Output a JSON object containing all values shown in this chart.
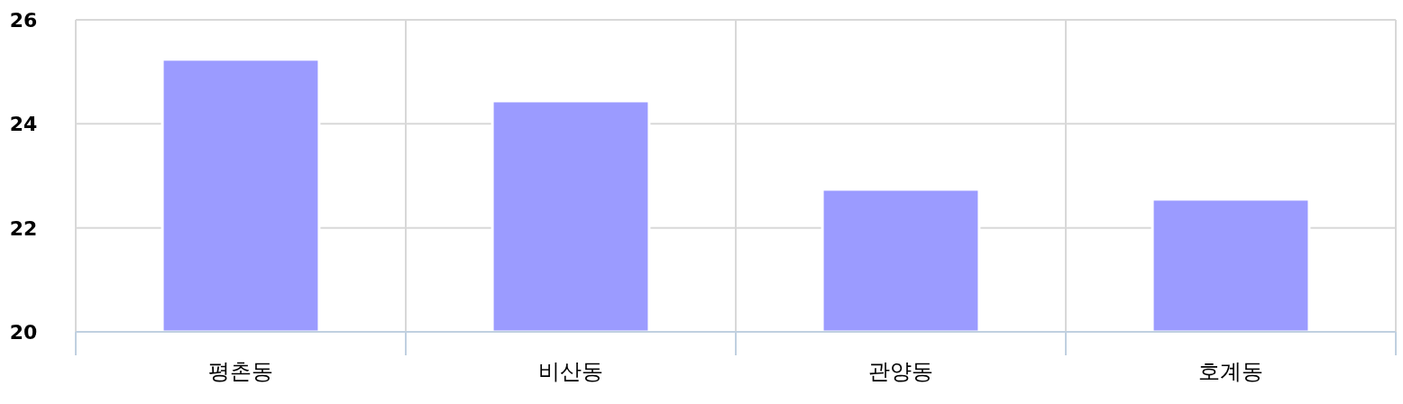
{
  "chart_data": {
    "type": "bar",
    "categories": [
      "평촌동",
      "비산동",
      "관양동",
      "호계동"
    ],
    "values": [
      25.24,
      24.44,
      22.74,
      22.55
    ],
    "color": "#9b9bff",
    "ylim": [
      20,
      26
    ],
    "yticks": [
      20,
      22,
      24,
      26
    ],
    "grid": true
  }
}
